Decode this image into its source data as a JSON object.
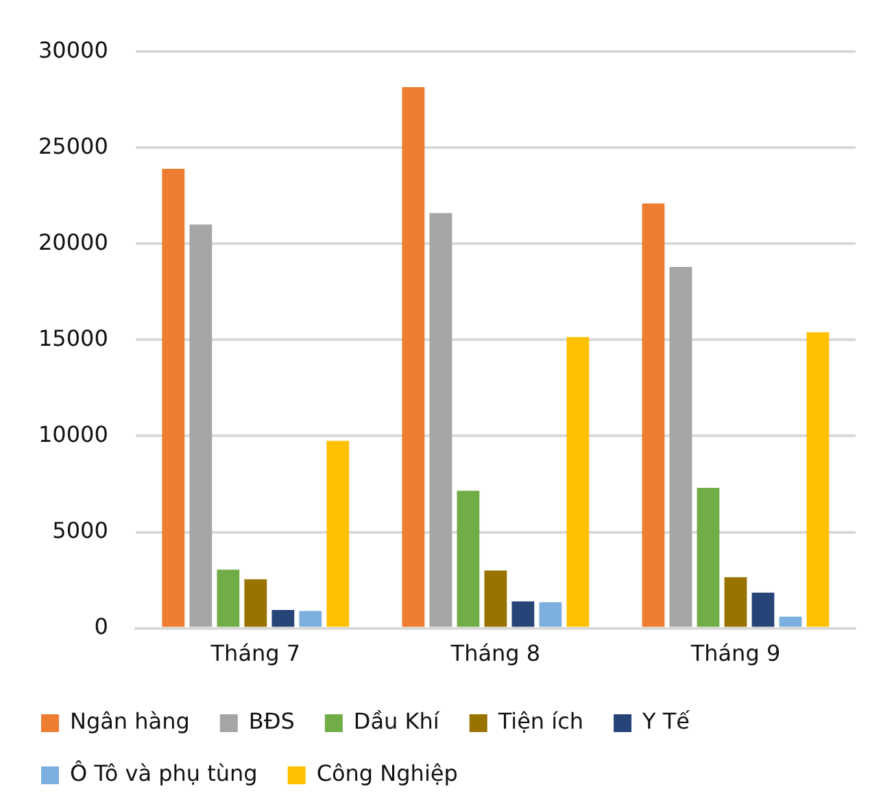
{
  "chart_data": {
    "type": "bar",
    "categories": [
      "Tháng 7",
      "Tháng 8",
      "Tháng 9"
    ],
    "series": [
      {
        "name": "Ngân hàng",
        "color": "#ed7d31",
        "values": [
          23900,
          28150,
          22100
        ]
      },
      {
        "name": "BĐS",
        "color": "#a5a5a5",
        "values": [
          21000,
          21600,
          18800
        ]
      },
      {
        "name": "Dầu Khí",
        "color": "#70ad47",
        "values": [
          3050,
          7150,
          7300
        ]
      },
      {
        "name": "Tiện ích",
        "color": "#997300",
        "values": [
          2550,
          3000,
          2650
        ]
      },
      {
        "name": "Y Tế",
        "color": "#264478",
        "values": [
          950,
          1400,
          1850
        ]
      },
      {
        "name": "Ô Tô và phụ tùng",
        "color": "#7cafdd",
        "values": [
          900,
          1350,
          600
        ]
      },
      {
        "name": "Công Nghiệp",
        "color": "#ffc000",
        "values": [
          9750,
          15150,
          15400
        ]
      }
    ],
    "ylim": [
      0,
      30000
    ],
    "yticks": [
      0,
      5000,
      10000,
      15000,
      20000,
      25000,
      30000
    ],
    "grid": "y",
    "legend": "bottom"
  }
}
